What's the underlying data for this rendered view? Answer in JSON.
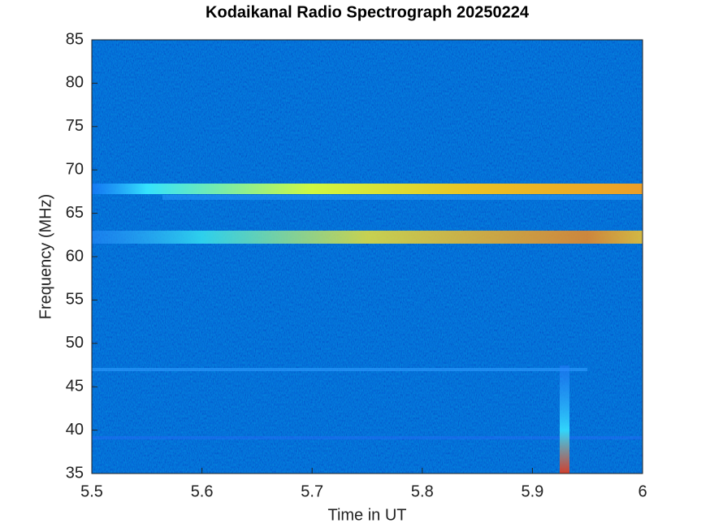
{
  "chart_data": {
    "type": "spectrogram",
    "title": "Kodaikanal Radio Spectrograph  20250224",
    "x_label": "Time in UT",
    "y_label": "Frequency (MHz)",
    "xlim": [
      5.5,
      6
    ],
    "xticks": [
      5.5,
      5.6,
      5.7,
      5.8,
      5.9,
      6
    ],
    "ylim": [
      35,
      85
    ],
    "yticks": [
      35,
      40,
      45,
      50,
      55,
      60,
      65,
      70,
      75,
      80,
      85
    ]
  }
}
